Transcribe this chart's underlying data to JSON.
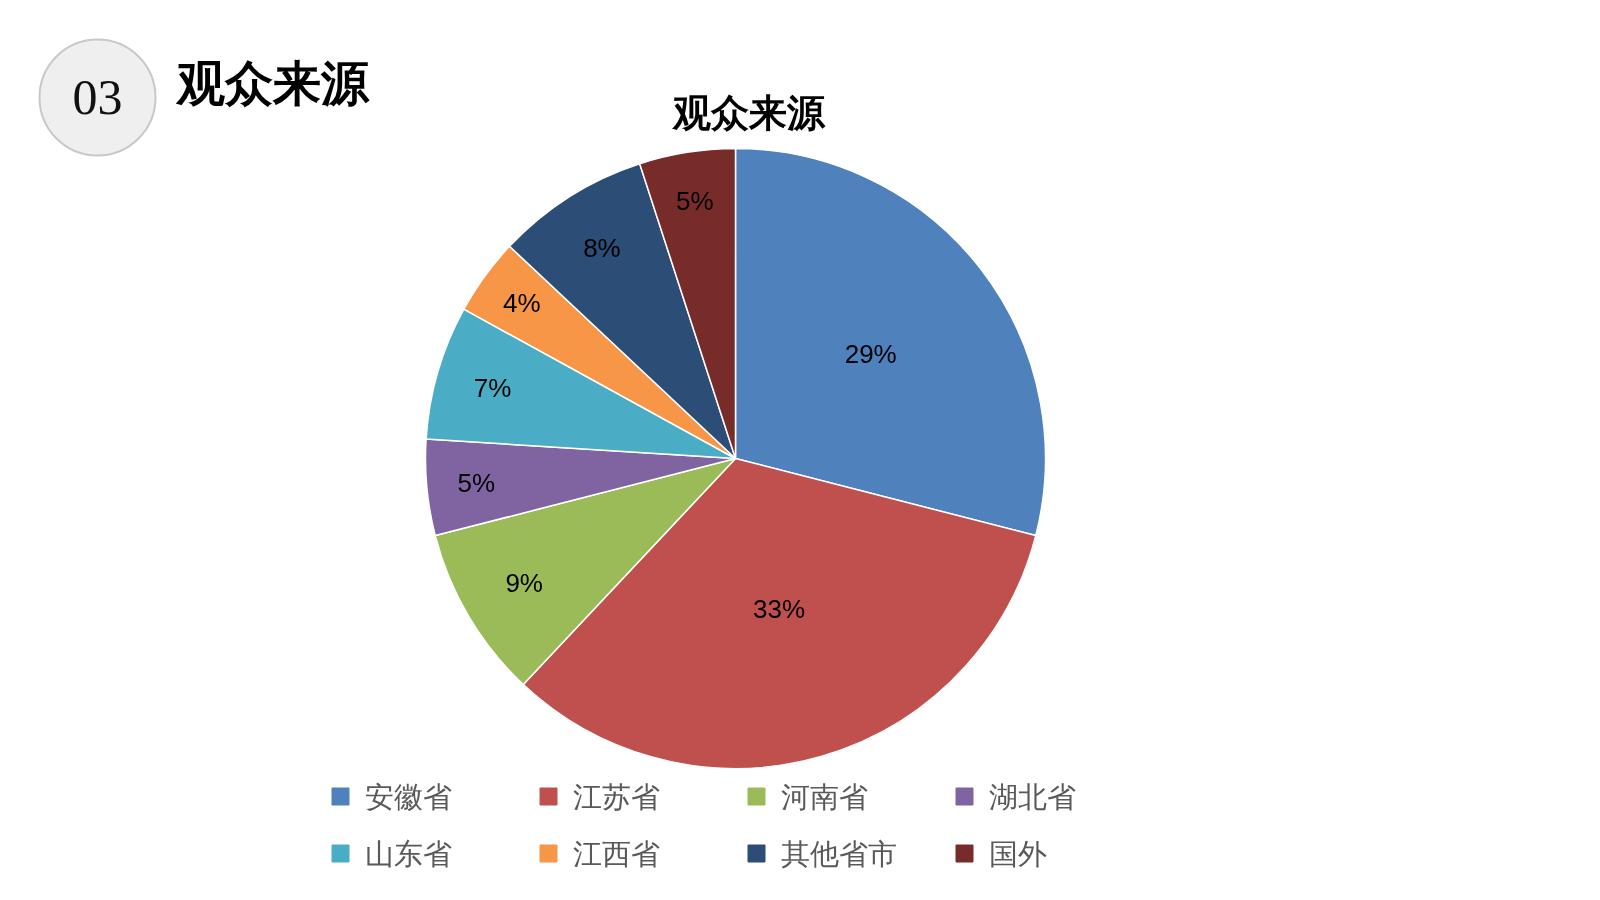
{
  "chart_data": {
    "type": "pie",
    "title": "观众来源",
    "annotations": [
      "03",
      "观众来源"
    ],
    "categories": [
      "安徽省",
      "江苏省",
      "河南省",
      "湖北省",
      "山东省",
      "江西省",
      "其他省市",
      "国外"
    ],
    "values": [
      29,
      33,
      9,
      5,
      7,
      4,
      8,
      5
    ],
    "colors": [
      "#4f81bd",
      "#c0504d",
      "#9bbb59",
      "#8064a2",
      "#4bacc6",
      "#f79646",
      "#2c4d75",
      "#772c2a"
    ],
    "value_labels": [
      "29%",
      "33%",
      "9%",
      "5%",
      "7%",
      "4%",
      "8%",
      "5%"
    ],
    "legend": "bottom"
  }
}
